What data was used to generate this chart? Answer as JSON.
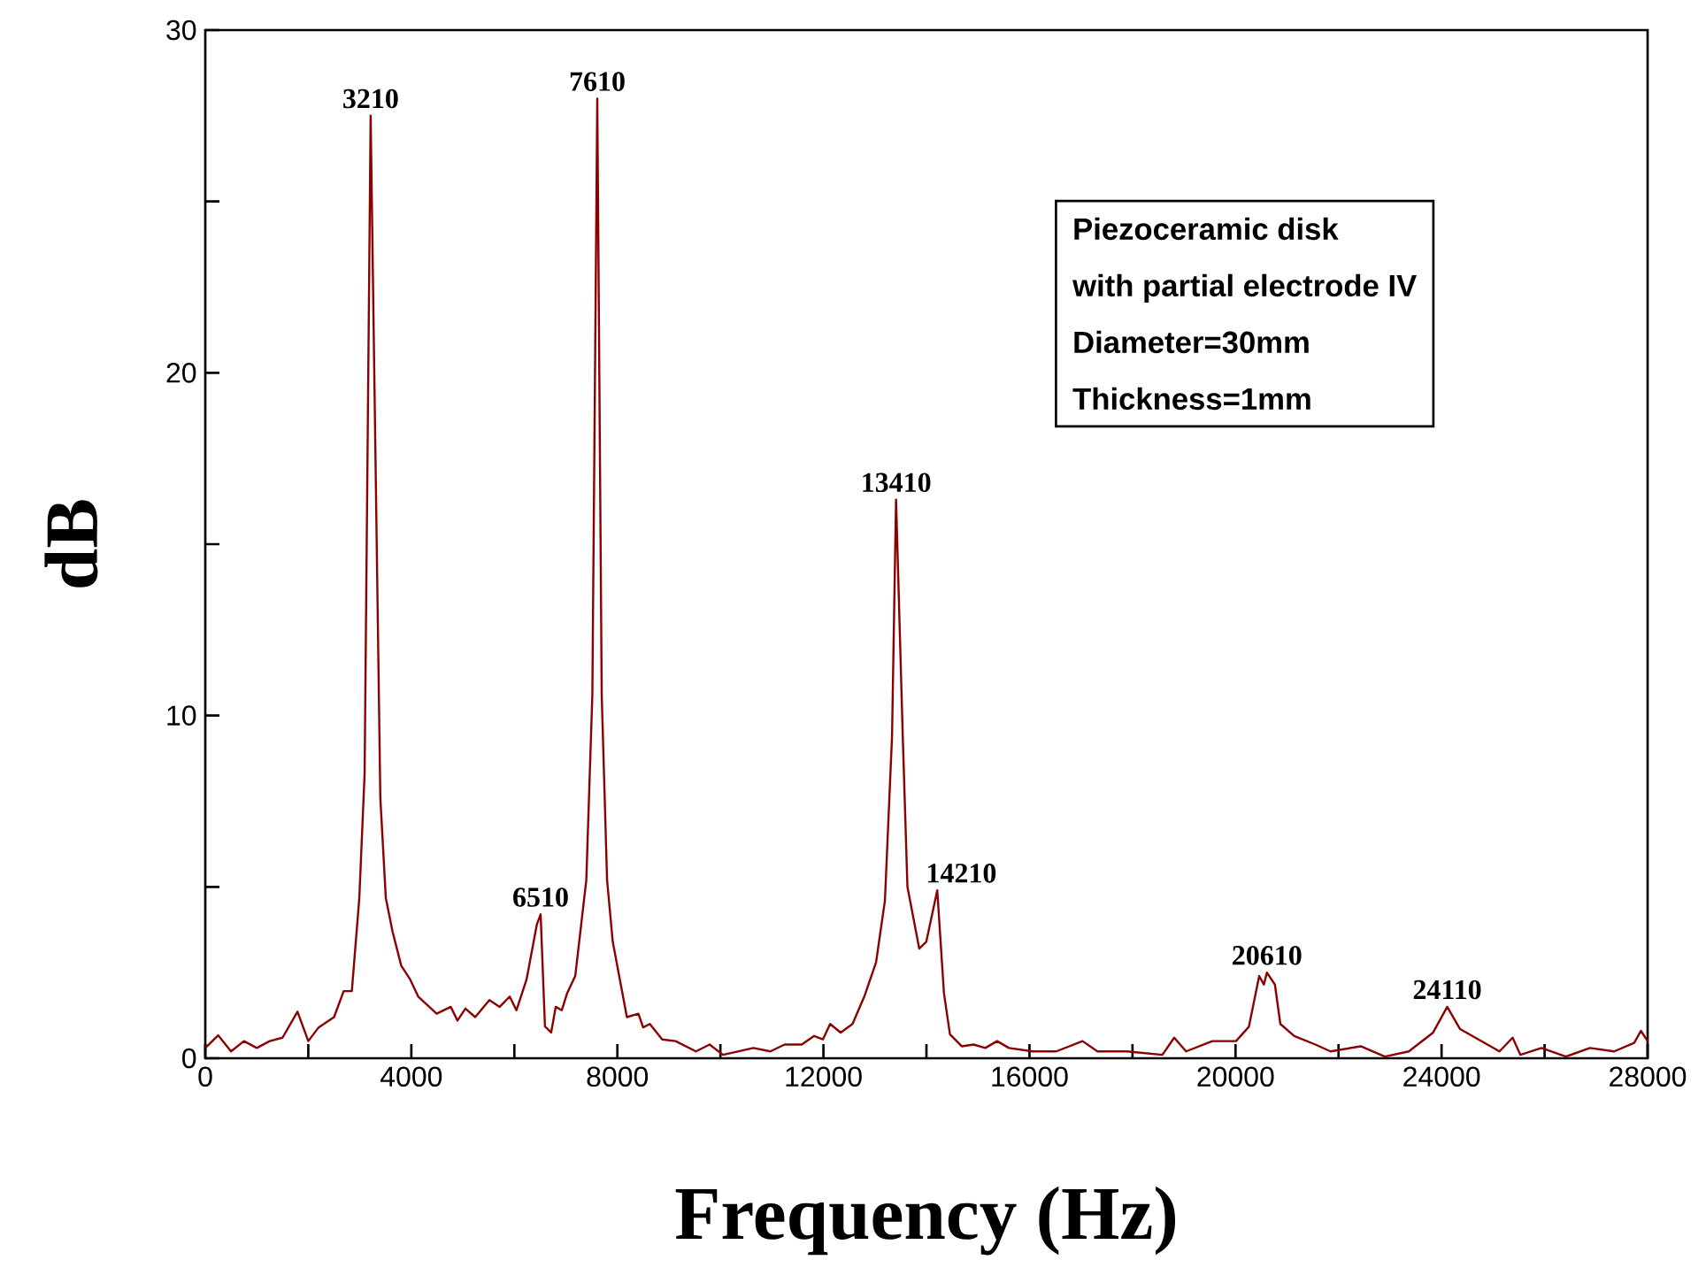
{
  "chart_data": {
    "type": "line",
    "xlabel": "Frequency (Hz)",
    "ylabel": "dB",
    "color": "#8b0000",
    "x": [
      0,
      250,
      500,
      750,
      1000,
      1250,
      1500,
      1790,
      2000,
      2200,
      2500,
      2687,
      2845,
      2990,
      3093,
      3210,
      3398,
      3505,
      3635,
      3804,
      3977,
      4134,
      4492,
      4765,
      4896,
      5050,
      5240,
      5515,
      5715,
      5910,
      6040,
      6237,
      6436,
      6510,
      6594,
      6714,
      6803,
      6920,
      7025,
      7182,
      7397,
      7514,
      7610,
      7696,
      7800,
      7910,
      8185,
      8408,
      8500,
      8630,
      8870,
      9130,
      9525,
      9790,
      10050,
      10640,
      10970,
      11246,
      11580,
      11820,
      11990,
      12130,
      12335,
      12565,
      12793,
      13022,
      13194,
      13332,
      13410,
      13540,
      13631,
      13860,
      13997,
      14210,
      14340,
      14456,
      14685,
      14915,
      15143,
      15372,
      15600,
      16060,
      16520,
      17030,
      17320,
      17890,
      18580,
      18810,
      19040,
      19550,
      20010,
      20260,
      20460,
      20550,
      20610,
      20765,
      20870,
      21140,
      21550,
      21845,
      22430,
      22900,
      23365,
      23836,
      24110,
      24360,
      24830,
      25125,
      25380,
      25530,
      25940,
      26415,
      26880,
      27350,
      27740,
      27870,
      28000
    ],
    "values": [
      0.3,
      0.67,
      0.2,
      0.5,
      0.3,
      0.5,
      0.6,
      1.36,
      0.5,
      0.9,
      1.2,
      1.96,
      1.96,
      4.67,
      8.3,
      27.5,
      7.6,
      4.67,
      3.7,
      2.7,
      2.3,
      1.8,
      1.3,
      1.5,
      1.1,
      1.45,
      1.2,
      1.7,
      1.5,
      1.8,
      1.4,
      2.3,
      3.9,
      4.2,
      0.93,
      0.75,
      1.5,
      1.4,
      1.9,
      2.4,
      5.2,
      10.6,
      28.0,
      10.6,
      5.2,
      3.4,
      1.2,
      1.3,
      0.9,
      1.0,
      0.55,
      0.5,
      0.2,
      0.4,
      0.1,
      0.3,
      0.2,
      0.4,
      0.4,
      0.65,
      0.55,
      1.0,
      0.75,
      1.0,
      1.8,
      2.8,
      4.6,
      9.4,
      16.3,
      9.4,
      5.0,
      3.2,
      3.4,
      4.9,
      1.9,
      0.7,
      0.35,
      0.4,
      0.3,
      0.5,
      0.3,
      0.2,
      0.2,
      0.5,
      0.2,
      0.2,
      0.1,
      0.6,
      0.2,
      0.5,
      0.5,
      0.92,
      2.4,
      2.15,
      2.5,
      2.15,
      1.0,
      0.65,
      0.4,
      0.2,
      0.35,
      0.05,
      0.2,
      0.75,
      1.5,
      0.85,
      0.45,
      0.2,
      0.6,
      0.1,
      0.3,
      0.05,
      0.3,
      0.2,
      0.45,
      0.8,
      0.5
    ],
    "xlim": [
      0,
      28000
    ],
    "ylim": [
      0,
      30
    ],
    "xticks": [
      0,
      {
        "value": 2000,
        "label": null
      },
      4000,
      {
        "value": 6000,
        "label": null
      },
      8000,
      {
        "value": 10000,
        "label": null
      },
      12000,
      {
        "value": 14000,
        "label": null
      },
      16000,
      {
        "value": 18000,
        "label": null
      },
      20000,
      {
        "value": 22000,
        "label": null
      },
      24000,
      {
        "value": 26000,
        "label": null
      },
      28000
    ],
    "yticks": [
      0,
      {
        "value": 5,
        "label": null
      },
      10,
      {
        "value": 15,
        "label": null
      },
      20,
      {
        "value": 25,
        "label": null
      },
      30
    ],
    "annotations": [
      {
        "text": "3210",
        "x": 3210,
        "y": 27.5
      },
      {
        "text": "7610",
        "x": 7610,
        "y": 28.0
      },
      {
        "text": "6510",
        "x": 6510,
        "y": 4.2
      },
      {
        "text": "13410",
        "x": 13410,
        "y": 16.3
      },
      {
        "text": "14210",
        "x": 14210,
        "y": 4.9
      },
      {
        "text": "20610",
        "x": 20610,
        "y": 2.5
      },
      {
        "text": "24110",
        "x": 24110,
        "y": 1.5
      },
      "Piezoceramic disk",
      "with partial electrode IV",
      "Diameter=30mm",
      "Thickness=1mm"
    ]
  }
}
